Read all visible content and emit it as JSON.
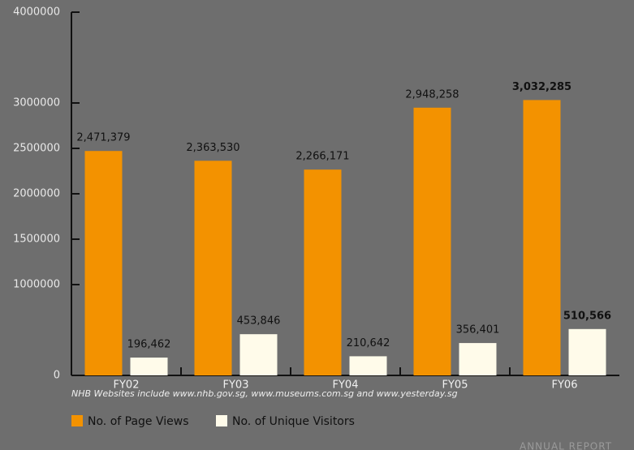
{
  "chart_data": {
    "type": "bar",
    "categories": [
      "FY02",
      "FY03",
      "FY04",
      "FY05",
      "FY06"
    ],
    "series": [
      {
        "name": "No. of Page Views",
        "color": "#f39200",
        "values": [
          2471379,
          2363530,
          2266171,
          2948258,
          3032285
        ],
        "value_labels": [
          "2,471,379",
          "2,363,530",
          "2,266,171",
          "2,948,258",
          "3,032,285"
        ]
      },
      {
        "name": "No. of Unique Visitors",
        "color": "#fffbea",
        "values": [
          196462,
          453846,
          210642,
          356401,
          510566
        ],
        "value_labels": [
          "196,462",
          "453,846",
          "210,642",
          "356,401",
          "510,566"
        ]
      }
    ],
    "ylim": [
      0,
      4000000
    ],
    "yticks": [
      0,
      1000000,
      1500000,
      2000000,
      2500000,
      3000000,
      4000000
    ],
    "note": "NHB Websites include www.nhb.gov.sg, www.museums.com.sg and www.yesterday.sg",
    "watermark": "ANNUAL REPORT"
  }
}
